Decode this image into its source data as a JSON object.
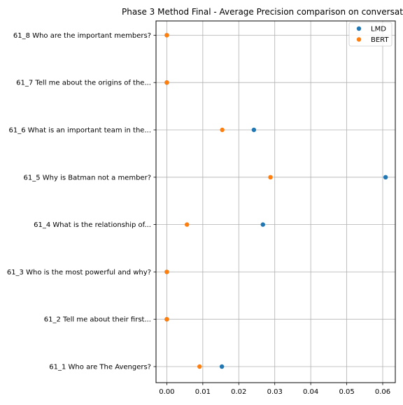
{
  "chart_data": {
    "type": "scatter",
    "title": "Phase 3 Method Final - Average Precision comparison on conversat",
    "xlabel": "",
    "ylabel": "",
    "xlim": [
      -0.003,
      0.0635
    ],
    "x_ticks": [
      0.0,
      0.01,
      0.02,
      0.03,
      0.04,
      0.05,
      0.06
    ],
    "x_tick_labels": [
      "0.00",
      "0.01",
      "0.02",
      "0.03",
      "0.04",
      "0.05",
      "0.06"
    ],
    "grid": true,
    "legend_position": "top-right",
    "categories": [
      "61_1 Who are The Avengers?",
      "61_2 Tell me about their first...",
      "61_3 Who is the most powerful and why?",
      "61_4 What is the relationship of...",
      "61_5 Why is Batman not a member?",
      "61_6 What is an important team in the...",
      "61_7 Tell me about the origins of the...",
      "61_8 Who are the important members?"
    ],
    "series": [
      {
        "name": "LMD",
        "color": "#1f77b4",
        "values": [
          0.0153,
          0.0,
          0.0,
          0.0267,
          0.0608,
          0.0242,
          0.0,
          0.0
        ]
      },
      {
        "name": "BERT",
        "color": "#ff7f0e",
        "values": [
          0.0091,
          0.0,
          0.0,
          0.0056,
          0.0288,
          0.0154,
          0.0,
          0.0
        ]
      }
    ]
  }
}
